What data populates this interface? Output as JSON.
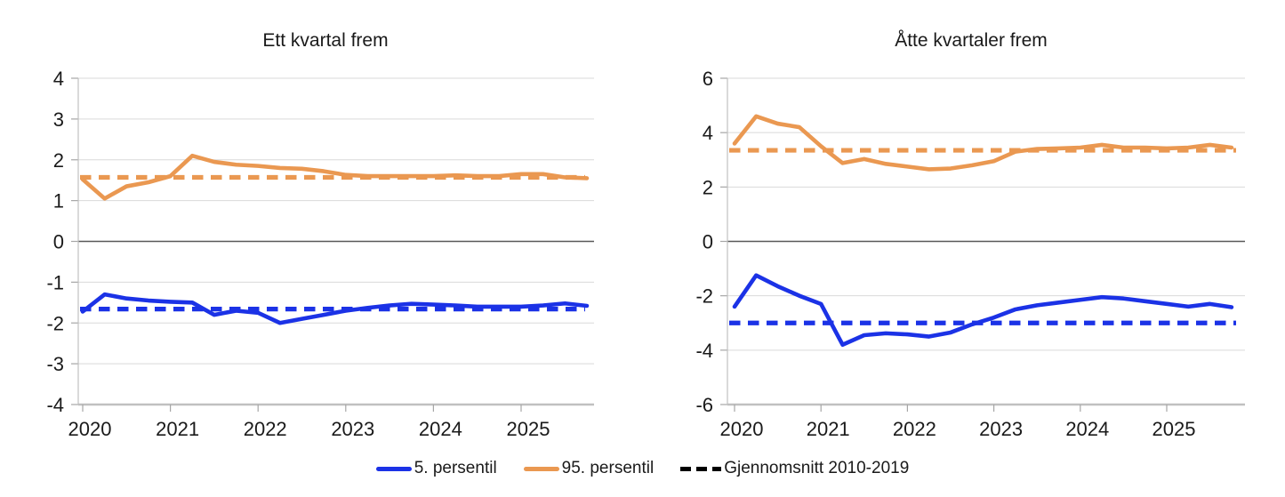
{
  "colors": {
    "blue": "#1B32E6",
    "orange": "#EA9851",
    "grid": "#D9D9D9",
    "zero_line": "#595959",
    "axis": "#C0C0C0",
    "tick": "#A6A6A6",
    "text": "#1A1A1A",
    "dashed_legend": "#000000"
  },
  "legend": {
    "items": [
      {
        "label": "5. persentil",
        "color_key": "blue",
        "style": "solid"
      },
      {
        "label": "95. persentil",
        "color_key": "orange",
        "style": "solid"
      },
      {
        "label": "Gjennomsnitt 2010-2019",
        "color_key": "dashed_legend",
        "style": "dashed"
      }
    ]
  },
  "chart_data": [
    {
      "type": "line",
      "title": "Ett kvartal frem",
      "x_freq": "quarterly",
      "x_start": "2020Q1",
      "x_labels": [
        "2020",
        "2021",
        "2022",
        "2023",
        "2024",
        "2025"
      ],
      "ylim": [
        -4,
        4
      ],
      "ytick_step": 1,
      "grid": true,
      "legend_position": "bottom",
      "series": [
        {
          "name": "5. persentil",
          "color_key": "blue",
          "style": "solid",
          "values": [
            -1.72,
            -1.3,
            -1.4,
            -1.45,
            -1.48,
            -1.5,
            -1.8,
            -1.7,
            -1.75,
            -2.0,
            -1.9,
            -1.8,
            -1.7,
            -1.63,
            -1.57,
            -1.53,
            -1.55,
            -1.57,
            -1.6,
            -1.6,
            -1.6,
            -1.57,
            -1.52,
            -1.58
          ]
        },
        {
          "name": "95. persentil",
          "color_key": "orange",
          "style": "solid",
          "values": [
            1.52,
            1.05,
            1.35,
            1.45,
            1.6,
            2.1,
            1.95,
            1.88,
            1.85,
            1.8,
            1.78,
            1.72,
            1.63,
            1.6,
            1.6,
            1.6,
            1.6,
            1.62,
            1.6,
            1.6,
            1.65,
            1.65,
            1.57,
            1.55
          ]
        },
        {
          "name": "Gjennomsnitt 2010-2019 (5. persentil)",
          "color_key": "blue",
          "style": "dashed",
          "constant": -1.66
        },
        {
          "name": "Gjennomsnitt 2010-2019 (95. persentil)",
          "color_key": "orange",
          "style": "dashed",
          "constant": 1.57
        }
      ]
    },
    {
      "type": "line",
      "title": "Åtte kvartaler frem",
      "x_freq": "quarterly",
      "x_start": "2020Q1",
      "x_labels": [
        "2020",
        "2021",
        "2022",
        "2023",
        "2024",
        "2025"
      ],
      "ylim": [
        -6,
        6
      ],
      "ytick_step": 2,
      "grid": true,
      "legend_position": "bottom",
      "series": [
        {
          "name": "5. persentil",
          "color_key": "blue",
          "style": "solid",
          "values": [
            -2.4,
            -1.25,
            -1.65,
            -2.0,
            -2.3,
            -3.8,
            -3.45,
            -3.38,
            -3.42,
            -3.5,
            -3.35,
            -3.05,
            -2.8,
            -2.5,
            -2.35,
            -2.25,
            -2.15,
            -2.05,
            -2.1,
            -2.2,
            -2.3,
            -2.4,
            -2.3,
            -2.42
          ]
        },
        {
          "name": "95. persentil",
          "color_key": "orange",
          "style": "solid",
          "values": [
            3.6,
            4.6,
            4.33,
            4.2,
            3.5,
            2.88,
            3.03,
            2.85,
            2.75,
            2.65,
            2.68,
            2.8,
            2.95,
            3.3,
            3.4,
            3.42,
            3.45,
            3.55,
            3.45,
            3.45,
            3.42,
            3.45,
            3.55,
            3.45
          ]
        },
        {
          "name": "Gjennomsnitt 2010-2019 (5. persentil)",
          "color_key": "blue",
          "style": "dashed",
          "constant": -3.0
        },
        {
          "name": "Gjennomsnitt 2010-2019 (95. persentil)",
          "color_key": "orange",
          "style": "dashed",
          "constant": 3.35
        }
      ]
    }
  ]
}
